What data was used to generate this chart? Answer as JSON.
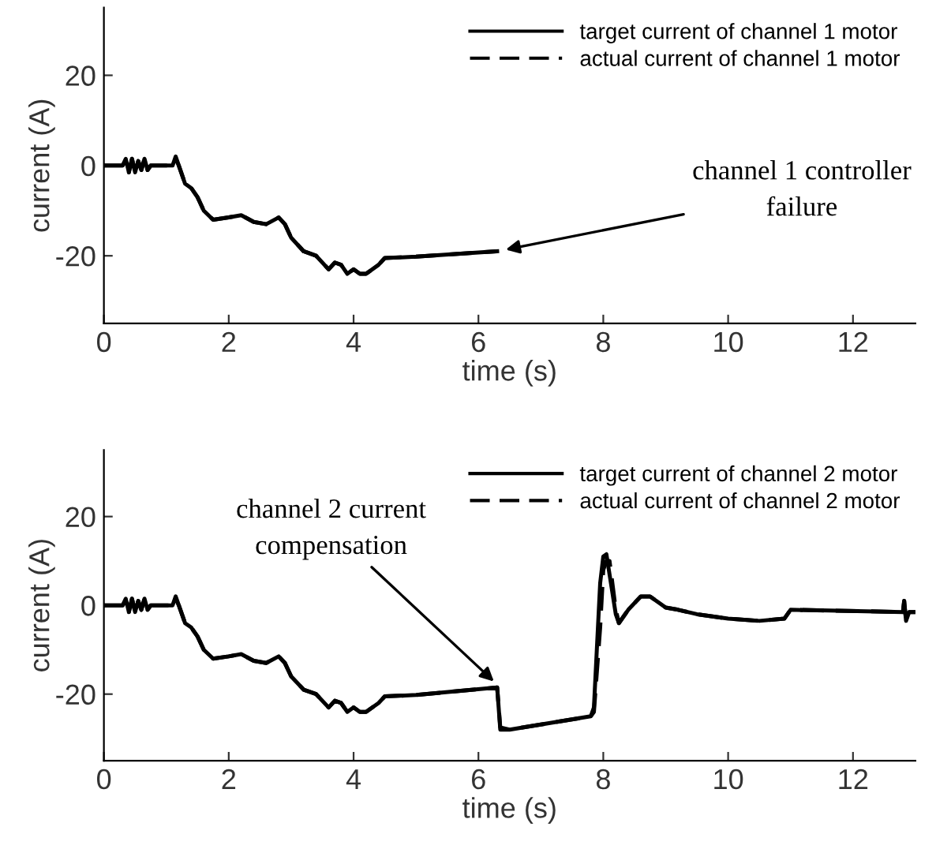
{
  "chart_data": [
    {
      "type": "line",
      "xlabel": "time (s)",
      "ylabel": "current (A)",
      "xlim": [
        0,
        13
      ],
      "ylim": [
        -35,
        35
      ],
      "xticks": [
        0,
        2,
        4,
        6,
        8,
        10,
        12
      ],
      "yticks": [
        -20,
        0,
        20
      ],
      "grid": false,
      "legend": "top right",
      "annotations": [
        {
          "text": "channel 1 controller\nfailure",
          "x": 6.3,
          "y": -19
        }
      ],
      "series": [
        {
          "name": "target current of channel 1 motor",
          "color": "#000000",
          "line_style": "solid",
          "x": [
            0,
            0.3,
            0.35,
            0.4,
            0.45,
            0.5,
            0.55,
            0.6,
            0.65,
            0.7,
            0.75,
            1.1,
            1.15,
            1.2,
            1.3,
            1.4,
            1.5,
            1.6,
            1.75,
            2.0,
            2.2,
            2.4,
            2.6,
            2.8,
            2.9,
            3.0,
            3.2,
            3.4,
            3.6,
            3.7,
            3.8,
            3.9,
            4.0,
            4.1,
            4.2,
            4.4,
            4.5,
            5.0,
            6.3
          ],
          "values": [
            0,
            0,
            1.5,
            -1.5,
            1.5,
            -1.5,
            1,
            -1,
            1.5,
            -1,
            0,
            0,
            2,
            0,
            -4,
            -5,
            -7,
            -10,
            -12,
            -11.5,
            -11,
            -12.5,
            -13,
            -11.5,
            -13,
            -16,
            -19,
            -20,
            -23,
            -21.5,
            -22,
            -24,
            -23,
            -24,
            -24,
            -22,
            -20.5,
            -20.2,
            -19
          ]
        },
        {
          "name": "actual current of channel 1 motor",
          "color": "#000000",
          "line_style": "dashed",
          "x": [
            0,
            0.3,
            0.35,
            0.4,
            0.45,
            0.5,
            0.55,
            0.6,
            0.65,
            0.7,
            0.75,
            1.1,
            1.15,
            1.2,
            1.3,
            1.4,
            1.5,
            1.6,
            1.75,
            2.0,
            2.2,
            2.4,
            2.6,
            2.8,
            2.9,
            3.0,
            3.2,
            3.4,
            3.6,
            3.7,
            3.8,
            3.9,
            4.0,
            4.1,
            4.2,
            4.4,
            4.5,
            5.0,
            6.3
          ],
          "values": [
            0,
            0,
            1,
            -1.5,
            1.5,
            -1.5,
            1,
            -1,
            1.5,
            -1,
            0,
            0,
            1.5,
            0,
            -4,
            -5,
            -7,
            -10,
            -12,
            -11.5,
            -11,
            -12.5,
            -13,
            -11.5,
            -13,
            -16,
            -19,
            -20,
            -23,
            -21.5,
            -22,
            -24,
            -23,
            -24,
            -24,
            -22,
            -20.5,
            -20.2,
            -19
          ]
        }
      ]
    },
    {
      "type": "line",
      "xlabel": "time (s)",
      "ylabel": "current (A)",
      "xlim": [
        0,
        13
      ],
      "ylim": [
        -35,
        35
      ],
      "xticks": [
        0,
        2,
        4,
        6,
        8,
        10,
        12
      ],
      "yticks": [
        -20,
        0,
        20
      ],
      "grid": false,
      "legend": "top right",
      "annotations": [
        {
          "text": "channel 2 current\ncompensation",
          "x": 6.35,
          "y": -18.5
        }
      ],
      "series": [
        {
          "name": "target current of channel 2 motor",
          "color": "#000000",
          "line_style": "solid",
          "x": [
            0,
            0.3,
            0.35,
            0.4,
            0.45,
            0.5,
            0.55,
            0.6,
            0.65,
            0.7,
            0.75,
            1.1,
            1.15,
            1.2,
            1.3,
            1.4,
            1.5,
            1.6,
            1.75,
            2.0,
            2.2,
            2.4,
            2.6,
            2.8,
            2.9,
            3.0,
            3.2,
            3.4,
            3.6,
            3.7,
            3.8,
            3.9,
            4.0,
            4.1,
            4.2,
            4.4,
            4.5,
            5.0,
            6.3,
            6.35,
            6.5,
            7.8,
            7.85,
            7.95,
            8.0,
            8.05,
            8.1,
            8.2,
            8.25,
            8.4,
            8.6,
            8.75,
            9.0,
            9.2,
            9.5,
            10.0,
            10.5,
            10.9,
            11.0,
            12.8,
            12.82,
            12.85,
            12.9,
            13.0
          ],
          "values": [
            0,
            0,
            1.5,
            -1.5,
            1.5,
            -1.5,
            1,
            -1,
            1.5,
            -1,
            0,
            0,
            2,
            0,
            -4,
            -5,
            -7,
            -10,
            -12,
            -11.5,
            -11,
            -12.5,
            -13,
            -11.5,
            -13,
            -16,
            -19,
            -20,
            -23,
            -21.5,
            -22,
            -24,
            -23,
            -24,
            -24,
            -22,
            -20.5,
            -20.2,
            -18.5,
            -28,
            -28,
            -25,
            -23,
            5,
            11,
            11.5,
            7,
            -2,
            -4,
            -1,
            2,
            2,
            -0.5,
            -1,
            -2,
            -3,
            -3.5,
            -3,
            -1,
            -1.5,
            1,
            -3.5,
            -1.5,
            -1.5
          ]
        },
        {
          "name": "actual current of channel 2 motor",
          "color": "#000000",
          "line_style": "dashed",
          "x": [
            0,
            0.3,
            0.35,
            0.4,
            0.45,
            0.5,
            0.55,
            0.6,
            0.65,
            0.7,
            0.75,
            1.1,
            1.15,
            1.2,
            1.3,
            1.4,
            1.5,
            1.6,
            1.75,
            2.0,
            2.2,
            2.4,
            2.6,
            2.8,
            2.9,
            3.0,
            3.2,
            3.4,
            3.6,
            3.7,
            3.8,
            3.9,
            4.0,
            4.1,
            4.2,
            4.4,
            4.5,
            5.0,
            6.3,
            6.35,
            6.5,
            7.8,
            7.85,
            7.95,
            8.0,
            8.05,
            8.1,
            8.2,
            8.25,
            8.4,
            8.6,
            8.75,
            9.0,
            9.2,
            9.5,
            10.0,
            10.5,
            10.9,
            11.0,
            12.8,
            12.82,
            12.85,
            12.9,
            13.0
          ],
          "values": [
            0,
            0,
            1,
            -1.5,
            1.5,
            -1.5,
            1,
            -1,
            1.5,
            -1,
            0,
            0,
            1.5,
            0,
            -4,
            -5,
            -7,
            -10,
            -12,
            -11.5,
            -11,
            -12.5,
            -13,
            -11.5,
            -13,
            -16,
            -19,
            -20,
            -23,
            -21.5,
            -22,
            -24,
            -23,
            -24,
            -24,
            -22,
            -20.5,
            -20.2,
            -18.5,
            -27.5,
            -28,
            -25,
            -24,
            -5,
            8,
            10,
            10,
            -1,
            -4,
            -1,
            2,
            2,
            -0.5,
            -1,
            -2,
            -3,
            -3.5,
            -3,
            -1,
            -1.5,
            1,
            -3.5,
            -1.5,
            -1.5
          ]
        }
      ]
    }
  ]
}
